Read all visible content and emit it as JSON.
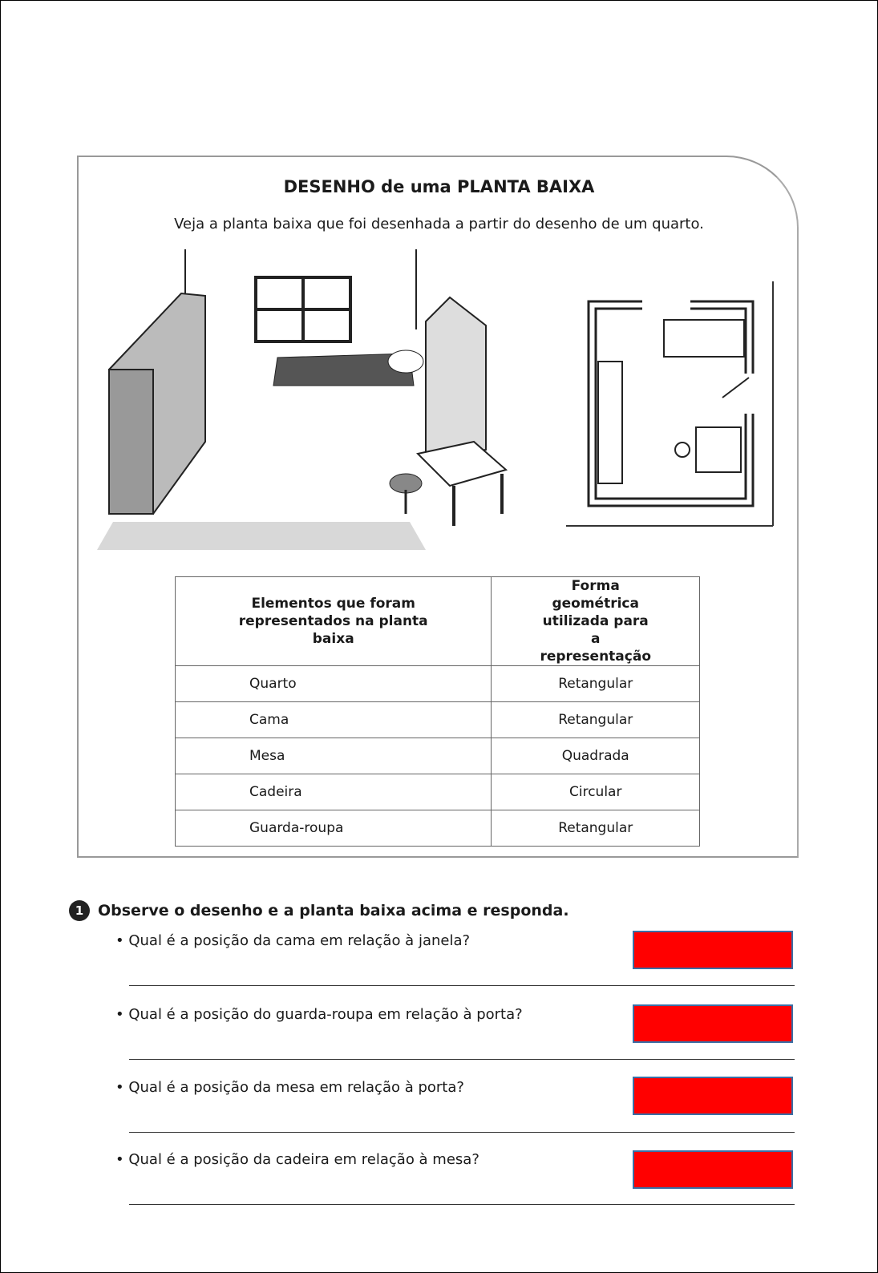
{
  "header": {
    "title": "DESENHO de uma PLANTA BAIXA",
    "subtitle": "Veja a planta baixa que foi desenhada a partir do desenho de um quarto."
  },
  "table": {
    "headers": [
      "Elementos que foram representados na planta baixa",
      "Forma geométrica utilizada para a representação"
    ],
    "rows": [
      [
        "Quarto",
        "Retangular"
      ],
      [
        "Cama",
        "Retangular"
      ],
      [
        "Mesa",
        "Quadrada"
      ],
      [
        "Cadeira",
        "Circular"
      ],
      [
        "Guarda-roupa",
        "Retangular"
      ]
    ]
  },
  "exercise": {
    "number": "1",
    "instruction": "Observe o desenho e a planta baixa acima e responda.",
    "questions": [
      "• Qual é a posição da cama em relação à janela?",
      "• Qual é a posição do guarda-roupa em relação à porta?",
      "• Qual é a posição da mesa em relação à porta?",
      "• Qual é a posição da cadeira em relação à mesa?"
    ]
  },
  "colors": {
    "answer_box": "#ff0000",
    "answer_box_border": "#3a6ea5"
  }
}
